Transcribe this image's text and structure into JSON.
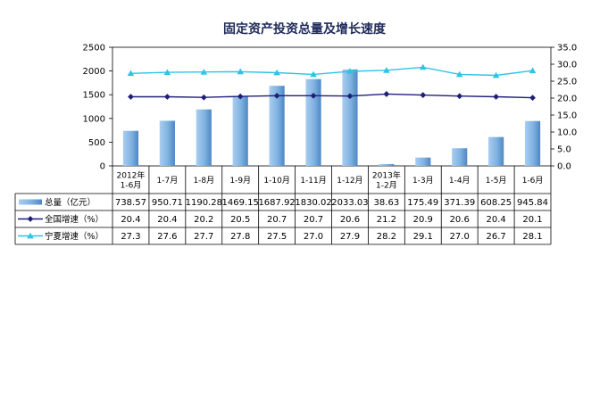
{
  "chart_data": {
    "type": "bar",
    "title": "固定资产投资总量及增长速度",
    "categories": [
      [
        "2012年",
        "1-6月"
      ],
      [
        "1-7月"
      ],
      [
        "1-8月"
      ],
      [
        "1-9月"
      ],
      [
        "1-10月"
      ],
      [
        "1-11月"
      ],
      [
        "1-12月"
      ],
      [
        "2013年",
        "1-2月"
      ],
      [
        "1-3月"
      ],
      [
        "1-4月"
      ],
      [
        "1-5月"
      ],
      [
        "1-6月"
      ]
    ],
    "series": [
      {
        "name": "总量（亿元）",
        "type": "bar",
        "axis": "left",
        "color": "#7fb2e0",
        "values": [
          738.57,
          950.71,
          1190.28,
          1469.15,
          1687.92,
          1830.02,
          2033.03,
          38.63,
          175.49,
          371.39,
          608.25,
          945.84
        ],
        "labels": [
          "738.57",
          "950.71",
          "1190.28",
          "1469.15",
          "1687.92",
          "1830.02",
          "2033.03",
          "38.63",
          "175.49",
          "371.39",
          "608.25",
          "945.84"
        ]
      },
      {
        "name": "全国增速（%）",
        "type": "line",
        "axis": "right",
        "color": "#1f1f7a",
        "marker": "diamond",
        "values": [
          20.4,
          20.4,
          20.2,
          20.5,
          20.7,
          20.7,
          20.6,
          21.2,
          20.9,
          20.6,
          20.4,
          20.1
        ],
        "labels": [
          "20.4",
          "20.4",
          "20.2",
          "20.5",
          "20.7",
          "20.7",
          "20.6",
          "21.2",
          "20.9",
          "20.6",
          "20.4",
          "20.1"
        ]
      },
      {
        "name": "宁夏增速（%）",
        "type": "line",
        "axis": "right",
        "color": "#2ec4e6",
        "marker": "triangle",
        "values": [
          27.3,
          27.6,
          27.7,
          27.8,
          27.5,
          27.0,
          27.9,
          28.2,
          29.1,
          27.0,
          26.7,
          28.1
        ],
        "labels": [
          "27.3",
          "27.6",
          "27.7",
          "27.8",
          "27.5",
          "27.0",
          "27.9",
          "28.2",
          "29.1",
          "27.0",
          "26.7",
          "28.1"
        ]
      }
    ],
    "y_left": {
      "range": [
        0,
        2500
      ],
      "ticks": [
        "0",
        "500",
        "1000",
        "1500",
        "2000",
        "2500"
      ]
    },
    "y_right": {
      "range": [
        0,
        35
      ],
      "ticks": [
        "0.0",
        "5.0",
        "10.0",
        "15.0",
        "20.0",
        "25.0",
        "30.0",
        "35.0"
      ]
    },
    "legend": "data-table"
  }
}
